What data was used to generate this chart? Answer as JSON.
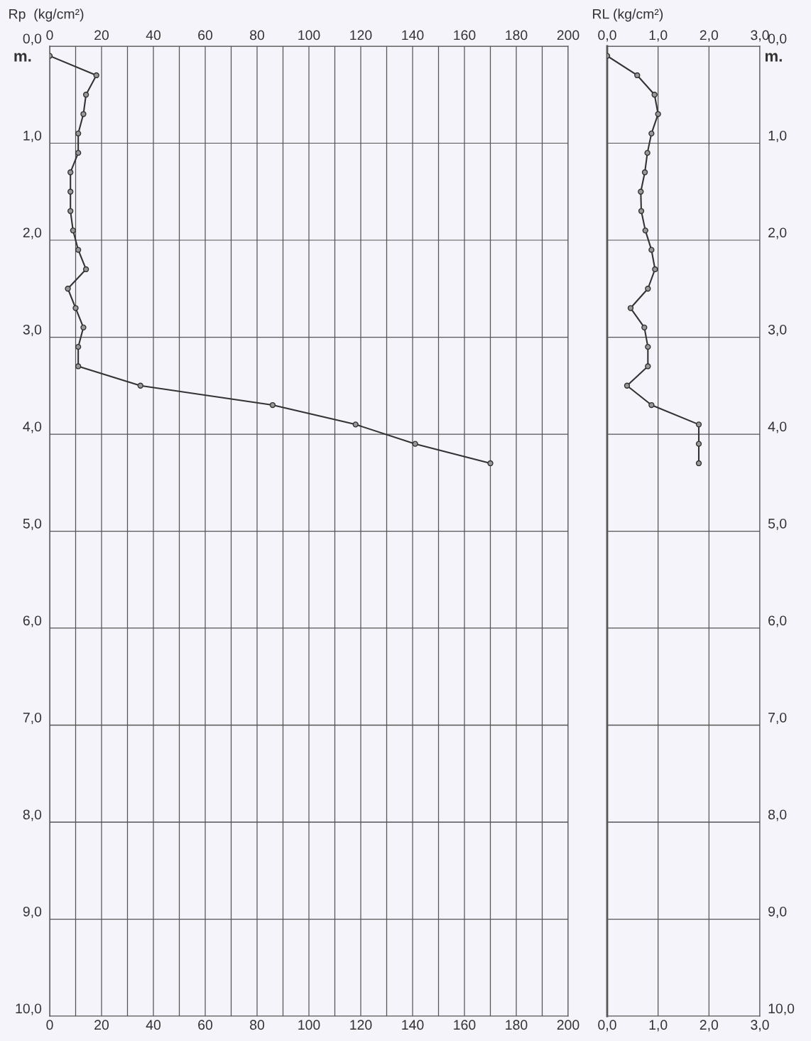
{
  "chart_data": [
    {
      "type": "line",
      "x2label": "Rp  (kg/cm²)",
      "annotations": [
        "m."
      ],
      "marker": "circle",
      "line_style": "solid",
      "grid": true,
      "tick_labels": "xy",
      "legend": false,
      "series": [
        {
          "color": "#333333",
          "x": [
            0,
            18,
            14,
            13,
            11,
            11,
            8,
            8,
            8,
            9,
            11,
            14,
            7,
            10,
            13,
            11,
            11,
            35,
            86,
            118,
            141,
            170
          ],
          "values": [
            0.1,
            0.3,
            0.5,
            0.7,
            0.9,
            1.1,
            1.3,
            1.5,
            1.7,
            1.9,
            2.1,
            2.3,
            2.5,
            2.7,
            2.9,
            3.1,
            3.3,
            3.5,
            3.7,
            3.9,
            4.1,
            4.3
          ]
        }
      ],
      "xlim": [
        0,
        200
      ],
      "xticks": [
        0,
        {
          "value": 10,
          "label": null
        },
        20,
        {
          "value": 30,
          "label": null
        },
        40,
        {
          "value": 50,
          "label": null
        },
        60,
        {
          "value": 70,
          "label": null
        },
        80,
        {
          "value": 90,
          "label": null
        },
        100,
        {
          "value": 110,
          "label": null
        },
        120,
        {
          "value": 130,
          "label": null
        },
        140,
        {
          "value": 150,
          "label": null
        },
        160,
        {
          "value": 170,
          "label": null
        },
        180,
        {
          "value": 190,
          "label": null
        },
        200
      ],
      "x2lim": [
        0,
        200
      ],
      "x2ticks": [
        0,
        {
          "value": 10,
          "label": null
        },
        20,
        {
          "value": 30,
          "label": null
        },
        40,
        {
          "value": 50,
          "label": null
        },
        60,
        {
          "value": 70,
          "label": null
        },
        80,
        {
          "value": 90,
          "label": null
        },
        100,
        {
          "value": 110,
          "label": null
        },
        120,
        {
          "value": 130,
          "label": null
        },
        140,
        {
          "value": 150,
          "label": null
        },
        160,
        {
          "value": 170,
          "label": null
        },
        180,
        {
          "value": 190,
          "label": null
        },
        200
      ],
      "ylim": [
        10,
        0
      ],
      "yticks": [
        {
          "value": 0,
          "label": "0,0"
        },
        {
          "value": 1,
          "label": "1,0"
        },
        {
          "value": 2,
          "label": "2,0"
        },
        {
          "value": 3,
          "label": "3,0"
        },
        {
          "value": 4,
          "label": "4,0"
        },
        {
          "value": 5,
          "label": "5,0"
        },
        {
          "value": 6,
          "label": "6,0"
        },
        {
          "value": 7,
          "label": "7,0"
        },
        {
          "value": 8,
          "label": "8,0"
        },
        {
          "value": 9,
          "label": "9,0"
        },
        {
          "value": 10,
          "label": "10,0"
        }
      ]
    },
    {
      "type": "line",
      "x2label": "RL (kg/cm²)",
      "annotations": [
        "m."
      ],
      "marker": "circle",
      "line_style": "solid",
      "grid": true,
      "legend": false,
      "series": [
        {
          "color": "#333333",
          "x": [
            0,
            0.59,
            0.93,
            1.0,
            0.87,
            0.79,
            0.74,
            0.66,
            0.67,
            0.75,
            0.87,
            0.94,
            0.8,
            0.46,
            0.73,
            0.8,
            0.8,
            0.39,
            0.87,
            1.8,
            1.8,
            1.8
          ],
          "values": [
            0.1,
            0.3,
            0.5,
            0.7,
            0.9,
            1.1,
            1.3,
            1.5,
            1.7,
            1.9,
            2.1,
            2.3,
            2.5,
            2.7,
            2.9,
            3.1,
            3.3,
            3.5,
            3.7,
            3.9,
            4.1,
            4.3
          ]
        }
      ],
      "xlim": [
        0,
        3
      ],
      "xticks": [
        {
          "value": 0,
          "label": "0,0"
        },
        {
          "value": 1,
          "label": "1,0"
        },
        {
          "value": 2,
          "label": "2,0"
        },
        {
          "value": 3,
          "label": "3,0"
        }
      ],
      "x2lim": [
        0,
        3
      ],
      "x2ticks": [
        {
          "value": 0,
          "label": "0,0"
        },
        {
          "value": 1,
          "label": "1,0"
        },
        {
          "value": 2,
          "label": "2,0"
        },
        {
          "value": 3,
          "label": "3,0"
        }
      ],
      "ylim": [
        10,
        0
      ],
      "yticks": [
        {
          "value": 0,
          "label": "0,0"
        },
        {
          "value": 1,
          "label": "1,0"
        },
        {
          "value": 2,
          "label": "2,0"
        },
        {
          "value": 3,
          "label": "3,0"
        },
        {
          "value": 4,
          "label": "4,0"
        },
        {
          "value": 5,
          "label": "5,0"
        },
        {
          "value": 6,
          "label": "6,0"
        },
        {
          "value": 7,
          "label": "7,0"
        },
        {
          "value": 8,
          "label": "8,0"
        },
        {
          "value": 9,
          "label": "9,0"
        },
        {
          "value": 10,
          "label": "10,0"
        }
      ]
    }
  ]
}
